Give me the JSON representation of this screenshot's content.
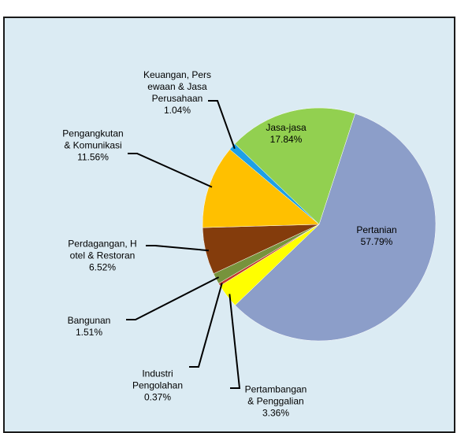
{
  "chart_data": {
    "type": "pie",
    "categories": [
      "Pertanian",
      "Pertambangan\n& Penggalian",
      "Industri\nPengolahan",
      "Bangunan",
      "Perdagangan, H\notel & Restoran",
      "Pengangkutan\n& Komunikasi",
      "Keuangan, Pers\newaan & Jasa\nPerusahaan",
      "Jasa-jasa"
    ],
    "values": [
      57.79,
      3.36,
      0.37,
      1.51,
      6.52,
      11.56,
      1.04,
      17.84
    ],
    "value_labels": [
      "57.79%",
      "3.36%",
      "0.37%",
      "1.51%",
      "6.52%",
      "11.56%",
      "1.04%",
      "17.84%"
    ],
    "colors": [
      "#8c9ec9",
      "#ffff00",
      "#c0392b",
      "#77933c",
      "#843c0c",
      "#ffc000",
      "#1ea0e6",
      "#92d050"
    ]
  }
}
